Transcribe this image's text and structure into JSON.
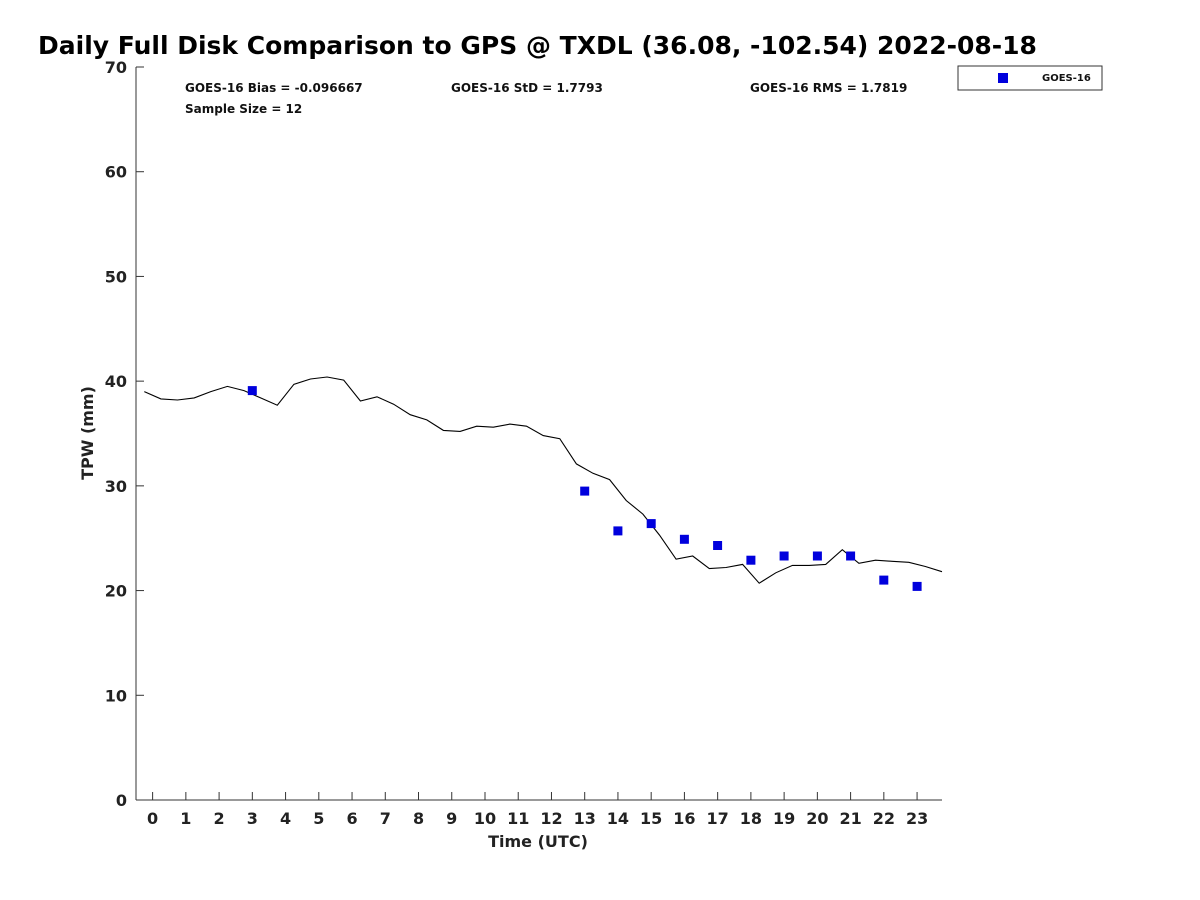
{
  "chart_data": {
    "type": "scatter",
    "title": "Daily Full Disk Comparison to GPS @ TXDL (36.08, -102.54) 2022-08-18",
    "xlabel": "Time (UTC)",
    "ylabel": "TPW (mm)",
    "xlim": [
      -0.5,
      23.75
    ],
    "ylim": [
      0,
      70
    ],
    "xticks": [
      0,
      1,
      2,
      3,
      4,
      5,
      6,
      7,
      8,
      9,
      10,
      11,
      12,
      13,
      14,
      15,
      16,
      17,
      18,
      19,
      20,
      21,
      22,
      23
    ],
    "yticks": [
      0,
      10,
      20,
      30,
      40,
      50,
      60,
      70
    ],
    "grid": false,
    "legend_position": "top-right",
    "stats": {
      "bias": "GOES-16 Bias = -0.096667",
      "std": "GOES-16 StD = 1.7793",
      "rms": "GOES-16 RMS = 1.7819",
      "sample_size": "Sample Size = 12"
    },
    "series": [
      {
        "name": "GOES-16",
        "kind": "scatter",
        "color": "#0000dd",
        "marker": "square",
        "x": [
          3,
          13,
          14,
          15,
          16,
          17,
          18,
          19,
          20,
          21,
          22,
          23
        ],
        "y": [
          39.1,
          29.5,
          25.7,
          26.4,
          24.9,
          24.3,
          22.9,
          23.3,
          23.3,
          23.3,
          21.0,
          20.4
        ]
      },
      {
        "kind": "line",
        "color": "#000000",
        "x": [
          -0.25,
          0.25,
          0.75,
          1.25,
          1.75,
          2.25,
          2.75,
          3.25,
          3.75,
          4.25,
          4.75,
          5.25,
          5.75,
          6.25,
          6.75,
          7.25,
          7.75,
          8.25,
          8.75,
          9.25,
          9.75,
          10.25,
          10.75,
          11.25,
          11.75,
          12.25,
          12.75,
          13.25,
          13.75,
          14.25,
          14.75,
          15.25,
          15.75,
          16.25,
          16.75,
          17.25,
          17.75,
          18.25,
          18.75,
          19.25,
          19.75,
          20.25,
          20.75,
          21.25,
          21.75,
          22.25,
          22.75,
          23.25,
          23.75
        ],
        "y": [
          39.0,
          38.3,
          38.2,
          38.4,
          39.0,
          39.5,
          39.1,
          38.4,
          37.7,
          39.7,
          40.2,
          40.4,
          40.1,
          38.1,
          38.5,
          37.8,
          36.8,
          36.3,
          35.3,
          35.2,
          35.7,
          35.6,
          35.9,
          35.7,
          34.8,
          34.5,
          32.1,
          31.2,
          30.6,
          28.6,
          27.3,
          25.3,
          23.0,
          23.3,
          22.1,
          22.2,
          22.5,
          20.7,
          21.7,
          22.4,
          22.4,
          22.5,
          23.9,
          22.6,
          22.9,
          22.8,
          22.7,
          22.3,
          21.8
        ]
      }
    ]
  },
  "colors": {
    "goes16": "#0000dd",
    "gps_line": "#000000",
    "axis": "#333333"
  }
}
